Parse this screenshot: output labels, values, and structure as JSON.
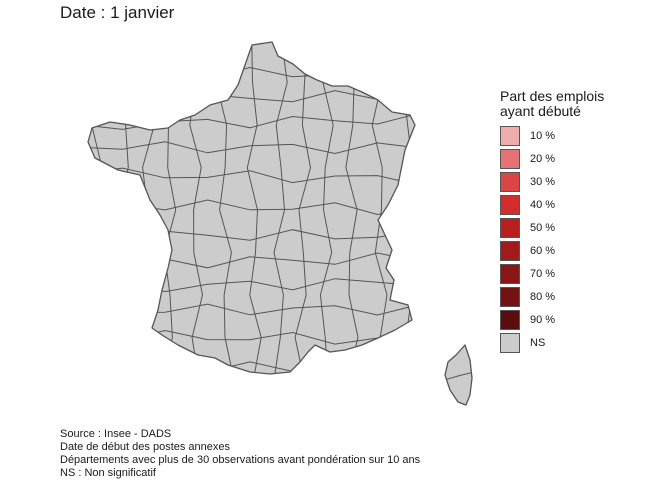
{
  "title": "Date : 1 janvier",
  "map": {
    "default_fill": "#cccccc",
    "stroke": "#555555",
    "regions": [
      "France métropolitaine",
      "Corse"
    ]
  },
  "legend": {
    "title_line1": "Part des emplois",
    "title_line2": "ayant débuté",
    "items": [
      {
        "label": "10 %",
        "color": "#f0adad"
      },
      {
        "label": "20 %",
        "color": "#e57373"
      },
      {
        "label": "30 %",
        "color": "#dc4545"
      },
      {
        "label": "40 %",
        "color": "#d12d2d"
      },
      {
        "label": "50 %",
        "color": "#b82020"
      },
      {
        "label": "60 %",
        "color": "#a11b1b"
      },
      {
        "label": "70 %",
        "color": "#8a1616"
      },
      {
        "label": "80 %",
        "color": "#721212"
      },
      {
        "label": "90 %",
        "color": "#5a0d0d"
      },
      {
        "label": "NS",
        "color": "#cccccc"
      }
    ]
  },
  "source": {
    "line1": "Source : Insee - DADS",
    "line2": "Date de début des postes annexes",
    "line3": "Départements avec plus de 30 observations avant pondération sur 10 ans",
    "line4": "NS : Non significatif"
  }
}
